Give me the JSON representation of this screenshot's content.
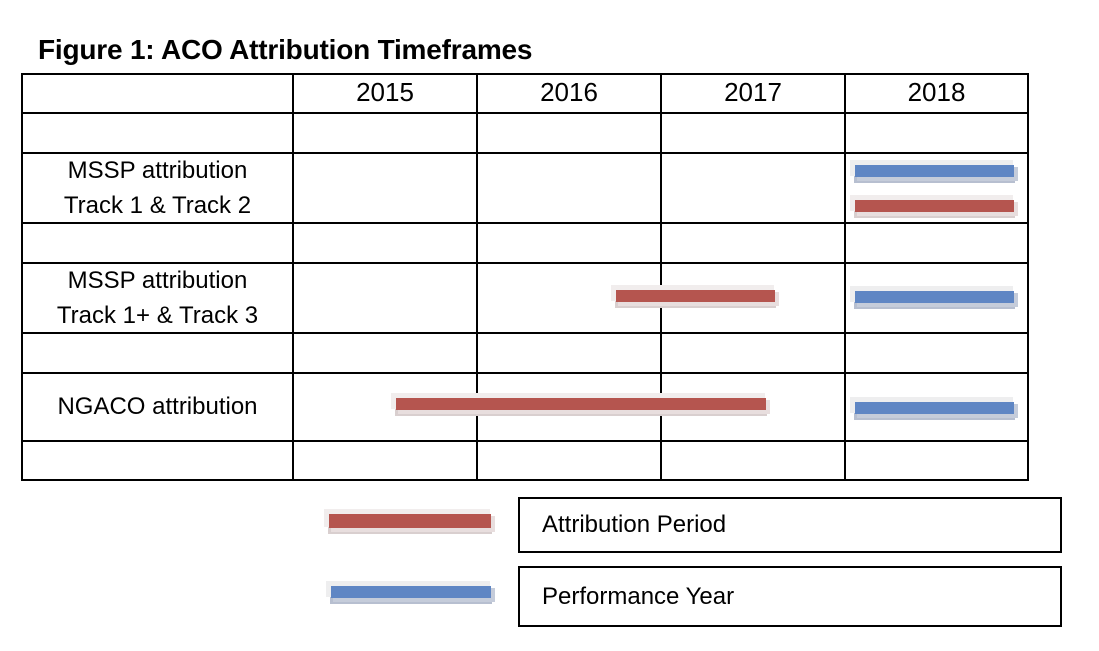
{
  "title": "Figure 1: ACO Attribution Timeframes",
  "years": [
    "2015",
    "2016",
    "2017",
    "2018"
  ],
  "rows": [
    {
      "line1": "MSSP attribution",
      "line2": "Track 1 & Track 2"
    },
    {
      "line1": "MSSP attribution",
      "line2": "Track 1+ & Track 3"
    },
    {
      "line1": "NGACO attribution"
    }
  ],
  "colors": {
    "attribution": "#b5554f",
    "performance": "#5f86c4"
  },
  "chart_data": {
    "type": "gantt",
    "categories": [
      "MSSP attribution Track 1 & Track 2",
      "MSSP attribution Track 1+ & Track 3",
      "NGACO attribution"
    ],
    "series": [
      {
        "name": "Attribution Period",
        "bars": [
          {
            "row": 0,
            "start": 2018.0,
            "end": 2019.0
          },
          {
            "row": 1,
            "start": 2016.7,
            "end": 2017.7
          },
          {
            "row": 2,
            "start": 2015.5,
            "end": 2017.65
          }
        ]
      },
      {
        "name": "Performance Year",
        "bars": [
          {
            "row": 0,
            "start": 2018.0,
            "end": 2019.0
          },
          {
            "row": 1,
            "start": 2018.0,
            "end": 2019.0
          },
          {
            "row": 2,
            "start": 2018.0,
            "end": 2019.0
          }
        ]
      }
    ],
    "xlim": [
      2015,
      2019
    ]
  },
  "legend": {
    "attribution_label": "Attribution Period",
    "performance_label": "Performance Year"
  }
}
